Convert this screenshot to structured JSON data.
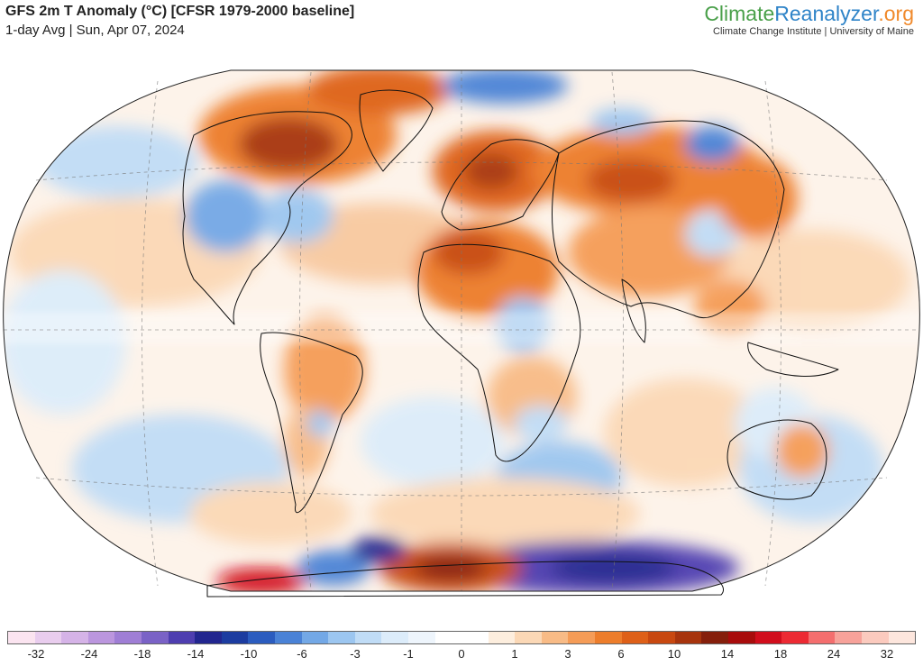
{
  "header": {
    "title": "GFS 2m T Anomaly (°C) [CFSR 1979-2000 baseline]",
    "subtitle": "1-day Avg | Sun, Apr 07, 2024"
  },
  "brand": {
    "name_part1": "Climate",
    "name_part2": "Reanalyzer",
    "name_part3": ".org",
    "subtitle": "Climate Change Institute | University of Maine",
    "colors": {
      "climate": "#4aa04a",
      "reanalyzer": "#2f84c8",
      "org": "#f08a2c"
    }
  },
  "map": {
    "projection": "Winkel Tripel",
    "variable": "2m temperature anomaly",
    "units": "°C",
    "layers": [
      "temperature-anomaly-field",
      "coastlines",
      "country-borders",
      "graticule"
    ]
  },
  "colorbar": {
    "tick_labels": [
      "-32",
      "-24",
      "-18",
      "-14",
      "-10",
      "-6",
      "-3",
      "-1",
      "0",
      "1",
      "3",
      "6",
      "10",
      "14",
      "18",
      "24",
      "32"
    ],
    "colors": [
      "#fbe4f0",
      "#e9cdee",
      "#d5b3e7",
      "#bb96de",
      "#9f7ed5",
      "#7a62c6",
      "#4e3eb0",
      "#22268f",
      "#1c3ca0",
      "#2b5cbf",
      "#4a82d6",
      "#73a8e6",
      "#9cc6f0",
      "#c0dcf6",
      "#dcecfa",
      "#eef5fc",
      "#ffffff",
      "#ffffff",
      "#fdeede",
      "#fbd8b6",
      "#f8bb86",
      "#f59c57",
      "#ed7d2b",
      "#de6018",
      "#c84810",
      "#a7340d",
      "#851f0c",
      "#a80c0c",
      "#d10d1c",
      "#ec2a33",
      "#f46e6e",
      "#f7a29a",
      "#fbcabe",
      "#fde6dd"
    ]
  }
}
